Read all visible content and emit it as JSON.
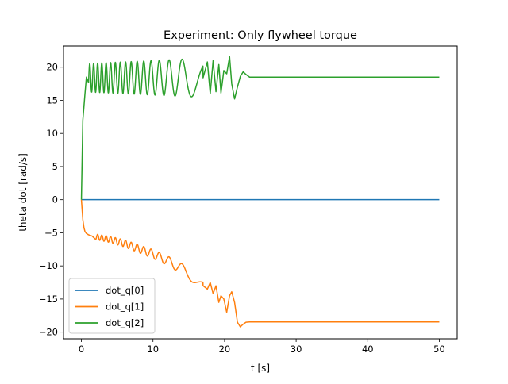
{
  "chart_data": {
    "type": "line",
    "title": "Experiment: Only flywheel torque",
    "xlabel": "t [s]",
    "ylabel": "theta dot [rad/s]",
    "xlim": [
      -2.5,
      52.5
    ],
    "ylim": [
      -21.0,
      23.2
    ],
    "xticks": [
      0,
      10,
      20,
      30,
      40,
      50
    ],
    "yticks": [
      -20,
      -15,
      -10,
      -5,
      0,
      5,
      10,
      15,
      20
    ],
    "grid": false,
    "legend_position": "lower-left",
    "series": [
      {
        "name": "dot_q[0]",
        "color": "#1f77b4",
        "x": [
          0,
          50
        ],
        "y": [
          0,
          0
        ]
      },
      {
        "name": "dot_q[1]",
        "color": "#ff7f0e",
        "x": [
          0,
          0.1,
          0.2,
          0.35,
          0.5,
          0.7,
          1.0,
          1.5,
          2.0,
          3.0,
          4.0,
          5.0,
          6.0,
          7.0,
          8.0,
          9.0,
          10.0,
          11.0,
          12.0,
          13.0,
          14.0,
          15.0,
          16.0,
          17.0,
          17.6,
          18.0,
          18.4,
          18.8,
          19.2,
          19.5,
          19.9,
          20.3,
          20.7,
          21.0,
          21.4,
          21.8,
          22.2,
          22.6,
          23.0,
          23.5,
          24.0,
          25.0,
          30.0,
          40.0,
          50.0
        ],
        "y": [
          0,
          -1.5,
          -3.0,
          -4.2,
          -4.8,
          -5.1,
          -5.3,
          -5.5,
          -5.6,
          -5.8,
          -6.0,
          -6.3,
          -6.6,
          -7.0,
          -7.4,
          -7.8,
          -8.2,
          -8.7,
          -9.2,
          -9.8,
          -10.4,
          -11.2,
          -12.1,
          -13.0,
          -13.5,
          -12.5,
          -14.2,
          -13.0,
          -15.5,
          -14.5,
          -15.0,
          -17.0,
          -14.5,
          -13.9,
          -15.5,
          -18.5,
          -19.2,
          -18.8,
          -18.5,
          -18.45,
          -18.45,
          -18.45,
          -18.45,
          -18.45,
          -18.45
        ]
      },
      {
        "name": "dot_q[2]",
        "color": "#2ca02c",
        "x": [
          0,
          0.1,
          0.2,
          0.35,
          0.5,
          0.7,
          1.0,
          17.0,
          17.6,
          18.0,
          18.4,
          18.8,
          19.2,
          19.5,
          19.9,
          20.3,
          20.7,
          21.0,
          21.4,
          21.8,
          22.2,
          22.6,
          23.0,
          23.5,
          24.0,
          25.0,
          30.0,
          40.0,
          50.0
        ],
        "y": [
          0,
          6.0,
          12.0,
          14.0,
          16.0,
          18.5,
          18.2,
          18.4,
          20.8,
          16.0,
          21.0,
          16.3,
          20.4,
          16.1,
          19.5,
          19.0,
          21.6,
          17.5,
          15.2,
          17.0,
          18.6,
          19.3,
          18.9,
          18.5,
          18.5,
          18.5,
          18.5,
          18.5,
          18.5
        ]
      }
    ]
  }
}
